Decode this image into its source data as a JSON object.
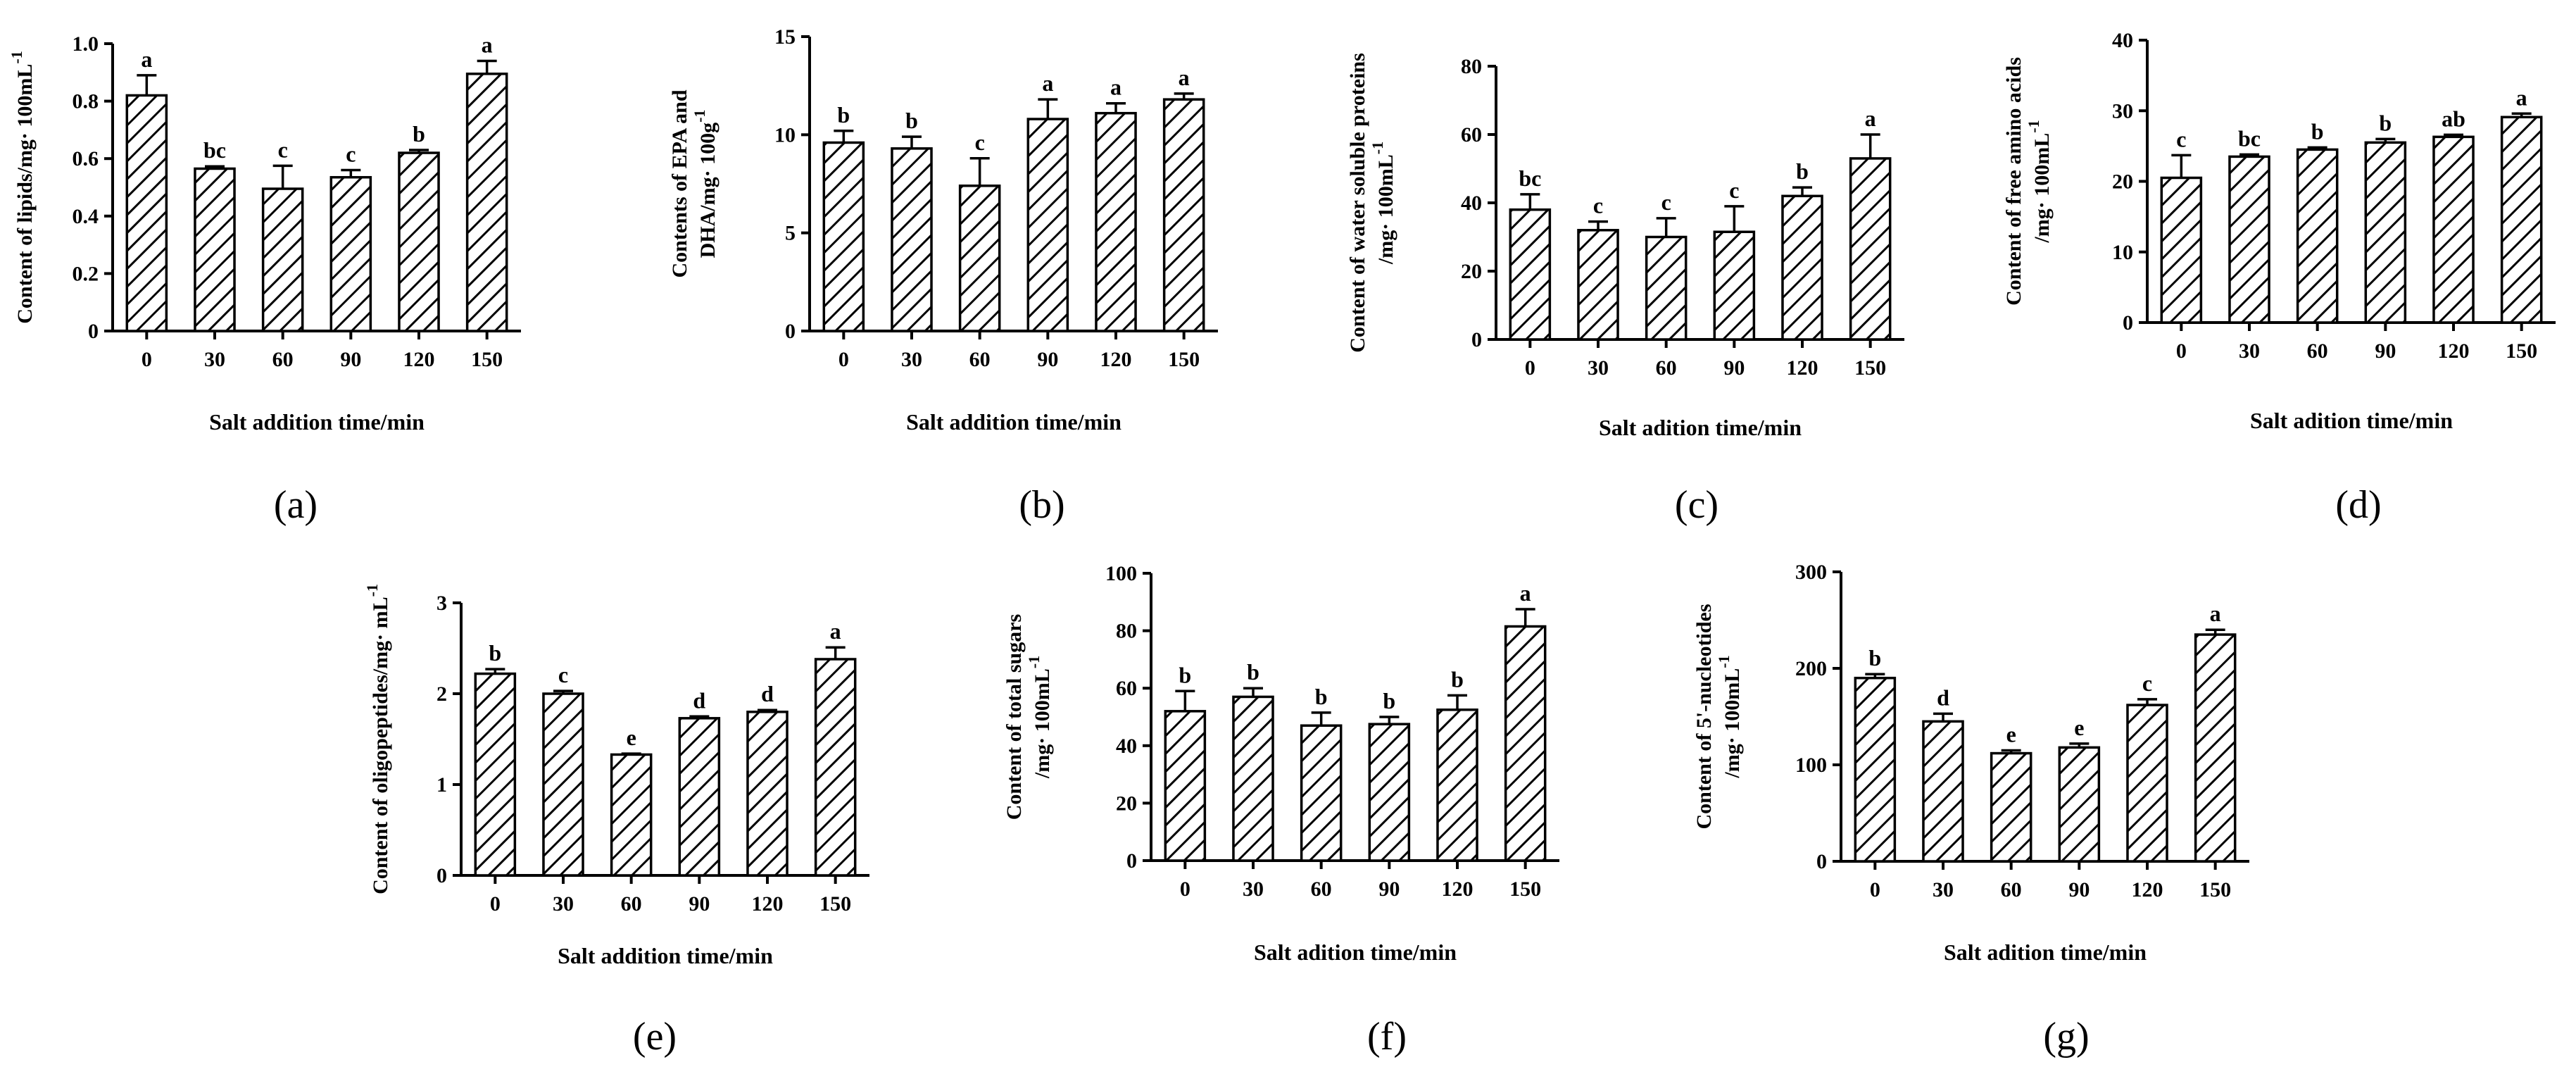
{
  "chart_data": [
    {
      "type": "bar",
      "panel": "(a)",
      "categories": [
        "0",
        "30",
        "60",
        "90",
        "120",
        "150"
      ],
      "values": [
        0.82,
        0.565,
        0.495,
        0.535,
        0.62,
        0.895
      ],
      "errors": [
        0.07,
        0.008,
        0.08,
        0.025,
        0.01,
        0.045
      ],
      "labels": [
        "a",
        "bc",
        "c",
        "c",
        "b",
        "a"
      ],
      "ylabel": [
        "Content of lipids/mg· 100mL",
        "-1"
      ],
      "xlabel": "Salt addition time/min",
      "ylim": [
        0,
        1.0
      ],
      "yticks": [
        "0",
        "0.2",
        "0.4",
        "0.6",
        "0.8",
        "1.0"
      ]
    },
    {
      "type": "bar",
      "panel": "(b)",
      "categories": [
        "0",
        "30",
        "60",
        "90",
        "120",
        "150"
      ],
      "values": [
        9.6,
        9.3,
        7.4,
        10.8,
        11.1,
        11.8
      ],
      "errors": [
        0.6,
        0.6,
        1.4,
        1.0,
        0.5,
        0.3
      ],
      "labels": [
        "b",
        "b",
        "c",
        "a",
        "a",
        "a"
      ],
      "ylabel": [
        "Contents of EPA and",
        "DHA/mg· 100g",
        "-1"
      ],
      "xlabel": "Salt addition time/min",
      "ylim": [
        0,
        15
      ],
      "yticks": [
        "0",
        "5",
        "10",
        "15"
      ]
    },
    {
      "type": "bar",
      "panel": "(c)",
      "categories": [
        "0",
        "30",
        "60",
        "90",
        "120",
        "150"
      ],
      "values": [
        38,
        32,
        30,
        31.5,
        42,
        53
      ],
      "errors": [
        4.5,
        2.5,
        5.5,
        7.5,
        2.5,
        7.0
      ],
      "labels": [
        "bc",
        "c",
        "c",
        "c",
        "b",
        "a"
      ],
      "ylabel": [
        "Content of water soluble proteins",
        "/mg· 100mL",
        "-1"
      ],
      "xlabel": "Salt adition time/min",
      "ylim": [
        0,
        80
      ],
      "yticks": [
        "0",
        "20",
        "40",
        "60",
        "80"
      ]
    },
    {
      "type": "bar",
      "panel": "(d)",
      "categories": [
        "0",
        "30",
        "60",
        "90",
        "120",
        "150"
      ],
      "values": [
        20.5,
        23.5,
        24.5,
        25.5,
        26.3,
        29.1
      ],
      "errors": [
        3.2,
        0.3,
        0.3,
        0.5,
        0.3,
        0.5
      ],
      "labels": [
        "c",
        "bc",
        "b",
        "b",
        "ab",
        "a"
      ],
      "ylabel": [
        "Content of free amino acids",
        "/mg· 100mL",
        "-1"
      ],
      "xlabel": "Salt adition time/min",
      "ylim": [
        0,
        40
      ],
      "yticks": [
        "0",
        "10",
        "20",
        "30",
        "40"
      ]
    },
    {
      "type": "bar",
      "panel": "(e)",
      "categories": [
        "0",
        "30",
        "60",
        "90",
        "120",
        "150"
      ],
      "values": [
        2.22,
        2.0,
        1.33,
        1.73,
        1.8,
        2.38
      ],
      "errors": [
        0.05,
        0.03,
        0.01,
        0.02,
        0.02,
        0.13
      ],
      "labels": [
        "b",
        "c",
        "e",
        "d",
        "d",
        "a"
      ],
      "ylabel": [
        "Content of oligopeptides/mg· mL",
        "-1"
      ],
      "xlabel": "Salt addition time/min",
      "ylim": [
        0,
        3
      ],
      "yticks": [
        "0",
        "1",
        "2",
        "3"
      ]
    },
    {
      "type": "bar",
      "panel": "(f)",
      "categories": [
        "0",
        "30",
        "60",
        "90",
        "120",
        "150"
      ],
      "values": [
        52,
        57,
        47,
        47.5,
        52.5,
        81.5
      ],
      "errors": [
        7,
        3,
        4.5,
        2.5,
        5,
        6
      ],
      "labels": [
        "b",
        "b",
        "b",
        "b",
        "b",
        "a"
      ],
      "ylabel": [
        "Content of total sugars",
        "/mg· 100mL",
        "-1"
      ],
      "xlabel": "Salt adition time/min",
      "ylim": [
        0,
        100
      ],
      "yticks": [
        "0",
        "20",
        "40",
        "60",
        "80",
        "100"
      ]
    },
    {
      "type": "bar",
      "panel": "(g)",
      "categories": [
        "0",
        "30",
        "60",
        "90",
        "120",
        "150"
      ],
      "values": [
        190,
        145,
        112,
        118,
        162,
        235
      ],
      "errors": [
        4,
        8,
        3,
        4,
        6,
        5
      ],
      "labels": [
        "b",
        "d",
        "e",
        "e",
        "c",
        "a"
      ],
      "ylabel": [
        "Content of 5'-nucleotides",
        "/mg· 100mL",
        "-1"
      ],
      "xlabel": "Salt adition time/min",
      "ylim": [
        0,
        300
      ],
      "yticks": [
        "0",
        "100",
        "200",
        "300"
      ]
    }
  ]
}
